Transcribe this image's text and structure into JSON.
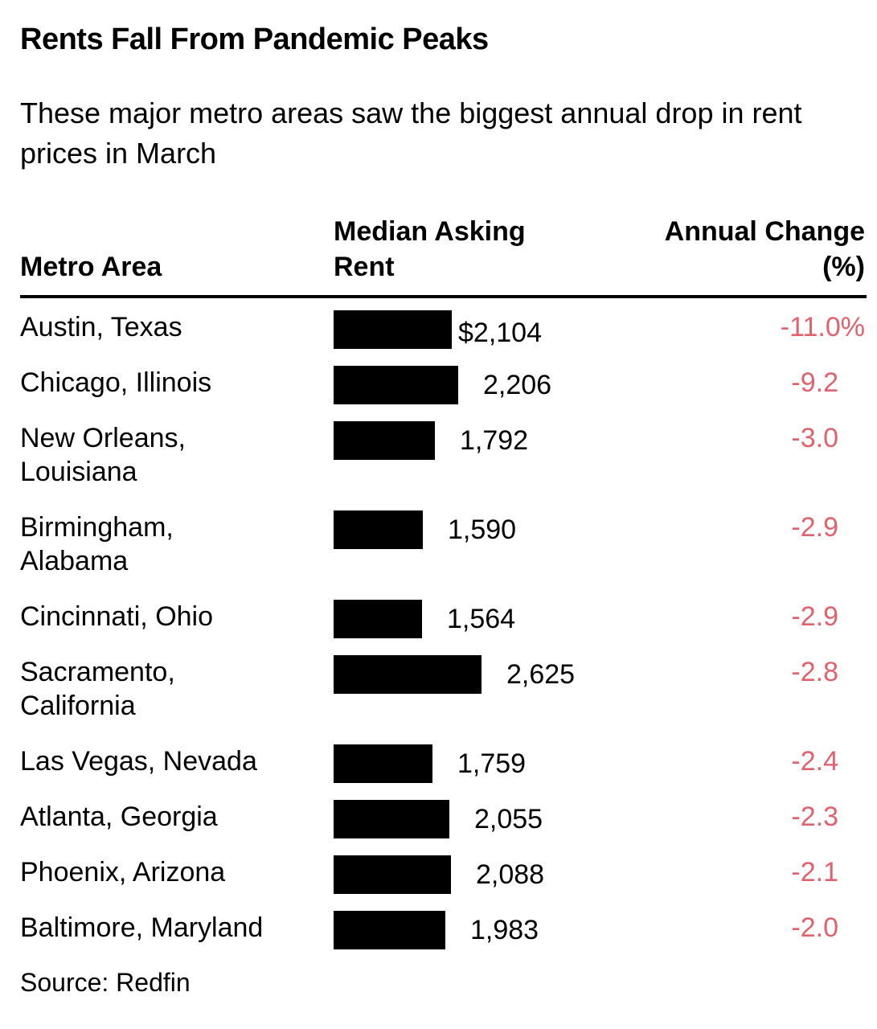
{
  "title": "Rents Fall From Pandemic Peaks",
  "subtitle": "These major metro areas saw the biggest annual drop in rent prices in March",
  "source": "Source: Redfin",
  "colors": {
    "change_text": "#e0626c",
    "bar": "#000000"
  },
  "chart_data": {
    "type": "table",
    "columns": {
      "metro": "Metro Area",
      "rent_line1": "Median Asking",
      "rent_line2": "Rent",
      "change_line1": "Annual Change",
      "change_line2": "(%)"
    },
    "rows": [
      {
        "metro_lines": [
          "Austin, Texas"
        ],
        "rent": 2104,
        "rent_label": "$2,104",
        "change": -11.0,
        "change_label": "-11.0%"
      },
      {
        "metro_lines": [
          "Chicago, Illinois"
        ],
        "rent": 2206,
        "rent_label": "2,206",
        "change": -9.2,
        "change_label": "-9.2"
      },
      {
        "metro_lines": [
          "New Orleans,",
          "Louisiana"
        ],
        "rent": 1792,
        "rent_label": "1,792",
        "change": -3.0,
        "change_label": "-3.0"
      },
      {
        "metro_lines": [
          "Birmingham,",
          "Alabama"
        ],
        "rent": 1590,
        "rent_label": "1,590",
        "change": -2.9,
        "change_label": "-2.9"
      },
      {
        "metro_lines": [
          "Cincinnati, Ohio"
        ],
        "rent": 1564,
        "rent_label": "1,564",
        "change": -2.9,
        "change_label": "-2.9"
      },
      {
        "metro_lines": [
          "Sacramento,",
          "California"
        ],
        "rent": 2625,
        "rent_label": "2,625",
        "change": -2.8,
        "change_label": "-2.8"
      },
      {
        "metro_lines": [
          "Las Vegas, Nevada"
        ],
        "rent": 1759,
        "rent_label": "1,759",
        "change": -2.4,
        "change_label": "-2.4"
      },
      {
        "metro_lines": [
          "Atlanta, Georgia"
        ],
        "rent": 2055,
        "rent_label": "2,055",
        "change": -2.3,
        "change_label": "-2.3"
      },
      {
        "metro_lines": [
          "Phoenix, Arizona"
        ],
        "rent": 2088,
        "rent_label": "2,088",
        "change": -2.1,
        "change_label": "-2.1"
      },
      {
        "metro_lines": [
          "Baltimore, Maryland"
        ],
        "rent": 1983,
        "rent_label": "1,983",
        "change": -2.0,
        "change_label": "-2.0"
      }
    ]
  }
}
